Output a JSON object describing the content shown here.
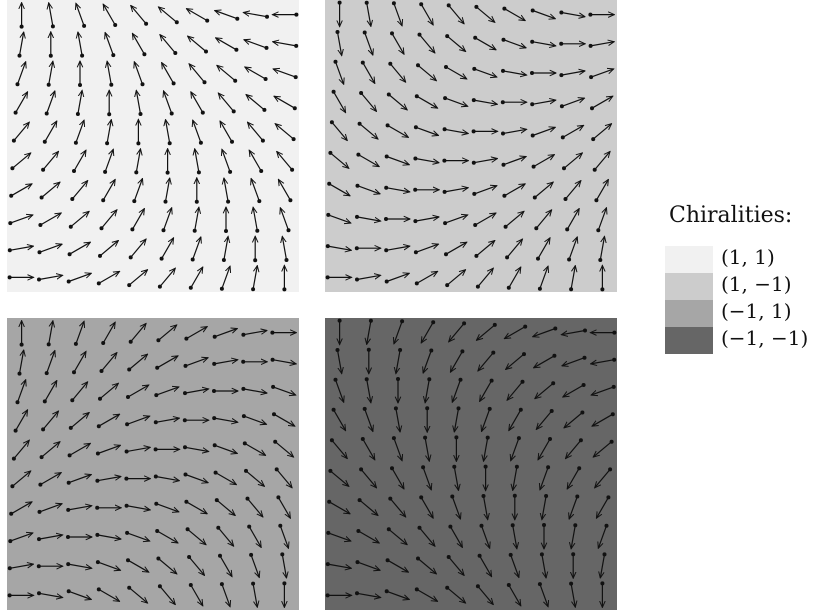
{
  "legend": {
    "title": "Chiralities:",
    "entries": [
      {
        "label": "(1, 1)",
        "color": "#f1f1f1"
      },
      {
        "label": "(1, −1)",
        "color": "#cccccc"
      },
      {
        "label": "(−1, 1)",
        "color": "#a6a6a6"
      },
      {
        "label": "(−1, −1)",
        "color": "#666666"
      }
    ]
  },
  "panels": [
    {
      "chirality": [
        1,
        1
      ],
      "color": "#f1f1f1"
    },
    {
      "chirality": [
        1,
        -1
      ],
      "color": "#cccccc"
    },
    {
      "chirality": [
        -1,
        1
      ],
      "color": "#a6a6a6"
    },
    {
      "chirality": [
        -1,
        -1
      ],
      "color": "#666666"
    }
  ],
  "arrow_color": "#111111"
}
